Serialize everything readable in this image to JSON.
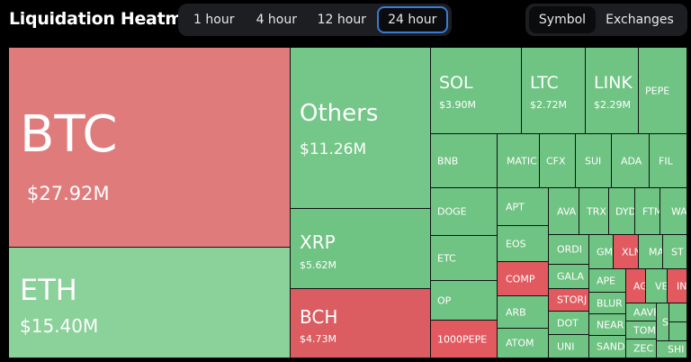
{
  "header": {
    "title": "Liquidation Heatmap",
    "time_tabs": [
      "1 hour",
      "4 hour",
      "12 hour",
      "24 hour"
    ],
    "active_time": "24 hour",
    "view_tabs": [
      "Symbol",
      "Exchanges"
    ],
    "active_view": "Symbol"
  },
  "colors": {
    "long_liquidation_green": "#6fc383",
    "short_liquidation_red": "#e07b7b",
    "accent_blue": "#3a7bd5"
  },
  "tiles": {
    "btc": {
      "symbol": "BTC",
      "value": "$27.92M"
    },
    "eth": {
      "symbol": "ETH",
      "value": "$15.40M"
    },
    "others": {
      "symbol": "Others",
      "value": "$11.26M"
    },
    "xrp": {
      "symbol": "XRP",
      "value": "$5.62M"
    },
    "bch": {
      "symbol": "BCH",
      "value": "$4.73M"
    },
    "sol": {
      "symbol": "SOL",
      "value": "$3.90M"
    },
    "ltc": {
      "symbol": "LTC",
      "value": "$2.72M"
    },
    "link": {
      "symbol": "LINK",
      "value": "$2.29M"
    },
    "pepe": {
      "symbol": "PEPE"
    },
    "bnb": {
      "symbol": "BNB"
    },
    "matic": {
      "symbol": "MATIC"
    },
    "cfx": {
      "symbol": "CFX"
    },
    "sui": {
      "symbol": "SUI"
    },
    "ada": {
      "symbol": "ADA"
    },
    "fil": {
      "symbol": "FIL"
    },
    "doge": {
      "symbol": "DOGE"
    },
    "apt": {
      "symbol": "APT"
    },
    "avax": {
      "symbol": "AVA"
    },
    "trx": {
      "symbol": "TRX"
    },
    "dydx": {
      "symbol": "DYD"
    },
    "ftm": {
      "symbol": "FTM"
    },
    "waves": {
      "symbol": "WA"
    },
    "etc": {
      "symbol": "ETC"
    },
    "eos": {
      "symbol": "EOS"
    },
    "ordi": {
      "symbol": "ORDI"
    },
    "gmt": {
      "symbol": "GM"
    },
    "xlm": {
      "symbol": "XLN"
    },
    "mask": {
      "symbol": "MA"
    },
    "stx": {
      "symbol": "ST"
    },
    "comp": {
      "symbol": "COMP"
    },
    "gala": {
      "symbol": "GALA"
    },
    "ape": {
      "symbol": "APE"
    },
    "agix": {
      "symbol": "AG"
    },
    "vet": {
      "symbol": "VE"
    },
    "inj": {
      "symbol": "IN"
    },
    "op": {
      "symbol": "OP"
    },
    "storj": {
      "symbol": "STORJ"
    },
    "blur": {
      "symbol": "BLUR"
    },
    "arb": {
      "symbol": "ARB"
    },
    "dot": {
      "symbol": "DOT"
    },
    "aave": {
      "symbol": "AAVE"
    },
    "s1": {
      "symbol": "S"
    },
    "near": {
      "symbol": "NEAR"
    },
    "tomo": {
      "symbol": "TOMO"
    },
    "pepe1000": {
      "symbol": "1000PEPE"
    },
    "atom": {
      "symbol": "ATOM"
    },
    "uni": {
      "symbol": "UNI"
    },
    "sand": {
      "symbol": "SAND"
    },
    "zec": {
      "symbol": "ZEC"
    },
    "shib": {
      "symbol": "SHI"
    }
  }
}
